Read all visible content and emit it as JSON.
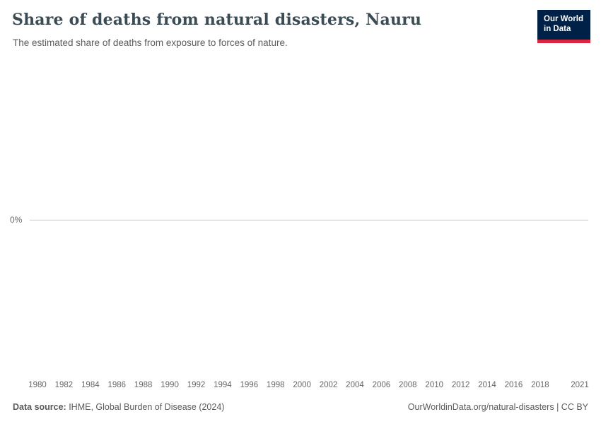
{
  "header": {
    "title": "Share of deaths from natural disasters, Nauru",
    "subtitle": "The estimated share of deaths from exposure to forces of nature.",
    "logo": {
      "line1": "Our World",
      "line2": "in Data",
      "background_color": "#002147",
      "accent_color": "#d7263d"
    }
  },
  "chart_data": {
    "type": "line",
    "title": "Share of deaths from natural disasters, Nauru",
    "xlabel": "",
    "ylabel": "",
    "unit": "%",
    "x_range": [
      1980,
      2021
    ],
    "x": [
      1980,
      1981,
      1982,
      1983,
      1984,
      1985,
      1986,
      1987,
      1988,
      1989,
      1990,
      1991,
      1992,
      1993,
      1994,
      1995,
      1996,
      1997,
      1998,
      1999,
      2000,
      2001,
      2002,
      2003,
      2004,
      2005,
      2006,
      2007,
      2008,
      2009,
      2010,
      2011,
      2012,
      2013,
      2014,
      2015,
      2016,
      2017,
      2018,
      2019,
      2020,
      2021
    ],
    "series": [
      {
        "name": "Nauru",
        "values": [
          0,
          0,
          0,
          0,
          0,
          0,
          0,
          0,
          0,
          0,
          0,
          0,
          0,
          0,
          0,
          0,
          0,
          0,
          0,
          0,
          0,
          0,
          0,
          0,
          0,
          0,
          0,
          0,
          0,
          0,
          0,
          0,
          0,
          0,
          0,
          0,
          0,
          0,
          0,
          0,
          0,
          0
        ]
      }
    ],
    "x_tick_labels": [
      "1980",
      "1982",
      "1984",
      "1986",
      "1988",
      "1990",
      "1992",
      "1994",
      "1996",
      "1998",
      "2000",
      "2002",
      "2004",
      "2006",
      "2008",
      "2010",
      "2012",
      "2014",
      "2016",
      "2018",
      "2021"
    ],
    "y_tick_labels": [
      "0%"
    ],
    "grid": "single horizontal line at 0%",
    "legend_position": "none",
    "gridline_color": "#c6c6c6"
  },
  "footer": {
    "datasource_label": "Data source:",
    "datasource_value": " IHME, Global Burden of Disease (2024)",
    "right_text": "OurWorldinData.org/natural-disasters | CC BY"
  }
}
